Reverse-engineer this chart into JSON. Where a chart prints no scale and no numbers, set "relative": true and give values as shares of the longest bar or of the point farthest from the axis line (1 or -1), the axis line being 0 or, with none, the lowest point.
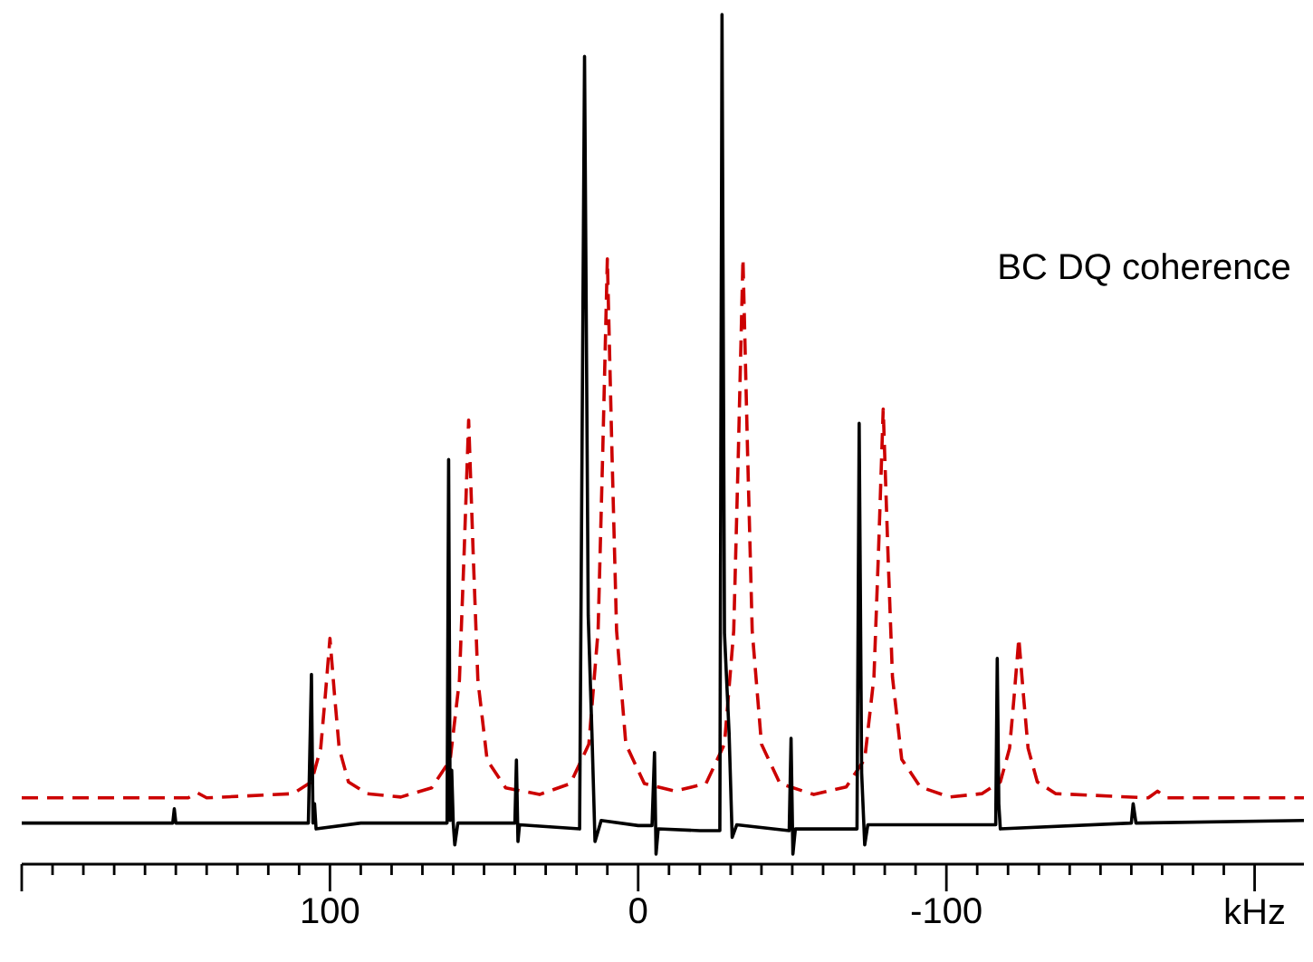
{
  "chart_data": {
    "type": "line",
    "relative": true,
    "annotations": [
      "BC DQ coherence"
    ],
    "xlim": [
      200,
      -216
    ],
    "xticks": [
      {
        "value": 200,
        "label": null
      },
      100,
      0,
      -100,
      {
        "value": -200,
        "label": "kHz"
      }
    ],
    "tick_labels": "x",
    "marker": "none",
    "series": [
      {
        "color": "#cc0000",
        "line_style": "dashed",
        "x": [
          200,
          146,
          143,
          140,
          112,
          106,
          103,
          101.5,
          100,
          98.5,
          97,
          94,
          88,
          77,
          67,
          61,
          58,
          56.5,
          55,
          53.5,
          52,
          49,
          43,
          32,
          22,
          16,
          13,
          11.5,
          10,
          8.5,
          7,
          4,
          -2,
          -12,
          -22,
          -28,
          -31,
          -32.5,
          -34,
          -35.5,
          -37,
          -40,
          -46,
          -57,
          -67.5,
          -73.5,
          -76.5,
          -78,
          -79.5,
          -81,
          -82.5,
          -85.5,
          -91.5,
          -101,
          -111.5,
          -117.5,
          -120.5,
          -122,
          -123.5,
          -125,
          -126.5,
          -129.5,
          -135.5,
          -165.5,
          -168.5,
          -171.5,
          -216
        ],
        "values": [
          0.067,
          0.067,
          0.073,
          0.067,
          0.072,
          0.086,
          0.126,
          0.189,
          0.257,
          0.189,
          0.126,
          0.086,
          0.072,
          0.068,
          0.079,
          0.112,
          0.207,
          0.355,
          0.517,
          0.355,
          0.207,
          0.112,
          0.079,
          0.071,
          0.084,
          0.131,
          0.266,
          0.478,
          0.709,
          0.478,
          0.266,
          0.131,
          0.084,
          0.075,
          0.084,
          0.131,
          0.266,
          0.478,
          0.709,
          0.478,
          0.266,
          0.131,
          0.084,
          0.071,
          0.08,
          0.113,
          0.211,
          0.363,
          0.53,
          0.363,
          0.211,
          0.113,
          0.08,
          0.068,
          0.072,
          0.086,
          0.126,
          0.189,
          0.257,
          0.189,
          0.126,
          0.086,
          0.072,
          0.067,
          0.075,
          0.067,
          0.067
        ]
      },
      {
        "color": "#000000",
        "line_style": "solid",
        "x": [
          200,
          175,
          151,
          150.5,
          150,
          130,
          107,
          106,
          105.5,
          105,
          104.5,
          90,
          62,
          61.5,
          61,
          60.5,
          60,
          59.5,
          58.5,
          40,
          39.5,
          39,
          38.5,
          19,
          17.4,
          16.2,
          15,
          14,
          12,
          0,
          -4.5,
          -5.3,
          -5.8,
          -6.5,
          -20,
          -26.5,
          -27.2,
          -28,
          -29.5,
          -30.5,
          -32,
          -49,
          -49.6,
          -50.2,
          -51,
          -71,
          -71.7,
          -72.5,
          -73.5,
          -74.5,
          -116,
          -116.5,
          -117,
          -117.5,
          -160,
          -160.6,
          -161.5,
          -216
        ],
        "values": [
          0.037,
          0.037,
          0.037,
          0.054,
          0.037,
          0.037,
          0.037,
          0.214,
          0.037,
          0.06,
          0.03,
          0.037,
          0.037,
          0.47,
          0.04,
          0.1,
          0.037,
          0.011,
          0.037,
          0.037,
          0.112,
          0.015,
          0.035,
          0.03,
          0.95,
          0.284,
          0.144,
          0.015,
          0.04,
          0.034,
          0.034,
          0.121,
          0.0,
          0.03,
          0.028,
          0.028,
          1.0,
          0.263,
          0.144,
          0.02,
          0.035,
          0.028,
          0.138,
          0.0,
          0.03,
          0.03,
          0.513,
          0.097,
          0.011,
          0.035,
          0.035,
          0.233,
          0.06,
          0.03,
          0.037,
          0.06,
          0.037,
          0.04
        ]
      }
    ]
  }
}
